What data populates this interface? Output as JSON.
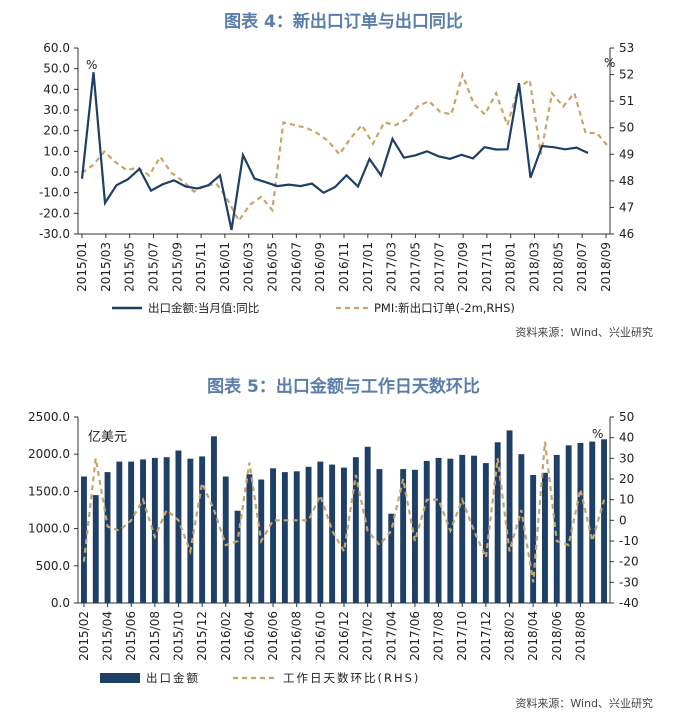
{
  "chart_data": [
    {
      "type": "line",
      "title": "图表 4：新出口订单与出口同比",
      "source": "资料来源：Wind、兴业研究",
      "left_unit": "%",
      "right_unit": "%",
      "ylim": [
        -30,
        60
      ],
      "yticks": [
        "60.0",
        "50.0",
        "40.0",
        "30.0",
        "20.0",
        "10.0",
        "0.0",
        "-10.0",
        "-20.0",
        "-30.0"
      ],
      "y2lim": [
        46,
        53
      ],
      "y2ticks": [
        "53",
        "52",
        "51",
        "50",
        "49",
        "48",
        "47",
        "46"
      ],
      "xtick_labels": [
        "2015/01",
        "2015/03",
        "2015/05",
        "2015/07",
        "2015/09",
        "2015/11",
        "2016/01",
        "2016/03",
        "2016/05",
        "2016/07",
        "2016/09",
        "2016/11",
        "2017/01",
        "2017/03",
        "2017/05",
        "2017/07",
        "2017/09",
        "2017/11",
        "2018/01",
        "2018/03",
        "2018/05",
        "2018/07",
        "2018/09"
      ],
      "series": [
        {
          "name": "出口金额:当月值:同比",
          "axis": "left",
          "values": [
            -3.3,
            48.3,
            -15,
            -6.4,
            -3.5,
            1.5,
            -9,
            -6,
            -4,
            -7,
            -8,
            -6.4,
            -1.6,
            -28,
            8.2,
            -3.2,
            -5,
            -6.8,
            -6.1,
            -6.8,
            -5.6,
            -10,
            -7.3,
            -1.6,
            -7,
            6.3,
            -1.6,
            16,
            6.9,
            8.1,
            10,
            7.6,
            6.4,
            8.3,
            6.6,
            12,
            10.9,
            11,
            43,
            -2.7,
            12.6,
            12,
            11,
            11.8,
            9.2
          ]
        },
        {
          "name": "PMI:新出口订单(-2m,RHS)",
          "axis": "right",
          "values": [
            48.3,
            48.6,
            49.1,
            48.7,
            48.4,
            48.5,
            48.2,
            48.9,
            48.3,
            48.0,
            47.6,
            47.8,
            47.9,
            47.3,
            46.5,
            47.1,
            47.4,
            46.9,
            50.2,
            50.1,
            50.0,
            49.8,
            49.5,
            49.0,
            49.6,
            50.1,
            49.4,
            50.2,
            50.1,
            50.3,
            50.8,
            51.0,
            50.6,
            50.5,
            52.0,
            50.9,
            50.5,
            51.3,
            50.1,
            51.5,
            51.8,
            49.0,
            51.3,
            50.8,
            51.3,
            49.8,
            49.8,
            49.3
          ]
        }
      ]
    },
    {
      "type": "bar",
      "title": "图表 5：出口金额与工作日天数环比",
      "source": "资料来源：Wind、兴业研究",
      "left_unit": "亿美元",
      "right_unit": "%",
      "ylim": [
        0,
        2500
      ],
      "yticks": [
        "2500.0",
        "2000.0",
        "1500.0",
        "1000.0",
        "500.0",
        "0.0"
      ],
      "y2lim": [
        -40,
        50
      ],
      "y2ticks": [
        "50",
        "40",
        "30",
        "20",
        "10",
        "0",
        "-10",
        "-20",
        "-30",
        "-40"
      ],
      "xtick_labels": [
        "2015/02",
        "2015/04",
        "2015/06",
        "2015/08",
        "2015/10",
        "2015/12",
        "2016/02",
        "2016/04",
        "2016/06",
        "2016/08",
        "2016/10",
        "2016/12",
        "2017/02",
        "2017/04",
        "2017/06",
        "2017/08",
        "2017/10",
        "2017/12",
        "2018/02",
        "2018/04",
        "2018/06",
        "2018/08"
      ],
      "series": [
        {
          "name": "出口金额",
          "axis": "left",
          "values": [
            1700,
            1450,
            1760,
            1900,
            1900,
            1930,
            1950,
            1960,
            2050,
            1940,
            1970,
            2240,
            1700,
            1240,
            1730,
            1660,
            1810,
            1760,
            1770,
            1830,
            1900,
            1860,
            1820,
            1960,
            2100,
            1800,
            1200,
            1800,
            1790,
            1910,
            1950,
            1940,
            1990,
            1980,
            1880,
            2160,
            2320,
            2000,
            1720,
            1750,
            1990,
            2120,
            2150,
            2170,
            2200
          ]
        },
        {
          "name": "工作日天数环比(RHS)",
          "axis": "right",
          "values": [
            -20,
            30,
            -3,
            -5,
            0,
            10,
            -8,
            5,
            0,
            -15,
            18,
            5,
            -12,
            -10,
            28,
            -10,
            0,
            0,
            0,
            0,
            12,
            -5,
            -15,
            22,
            -5,
            -12,
            -5,
            20,
            -10,
            10,
            10,
            -5,
            10,
            -5,
            -18,
            30,
            -15,
            5,
            -30,
            38,
            -10,
            -12,
            15,
            -10,
            10
          ]
        }
      ]
    }
  ]
}
